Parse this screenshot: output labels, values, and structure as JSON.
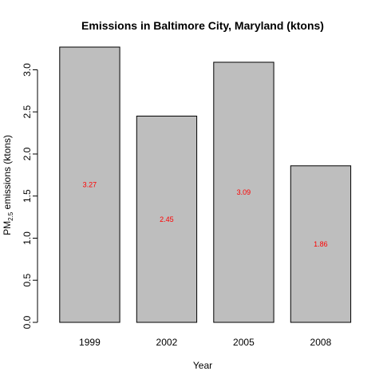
{
  "chart_data": {
    "type": "bar",
    "title": "Emissions in Baltimore City, Maryland (ktons)",
    "xlabel": "Year",
    "ylabel_main": "PM",
    "ylabel_sub": "2.5",
    "ylabel_rest": " emissions (ktons)",
    "categories": [
      "1999",
      "2002",
      "2005",
      "2008"
    ],
    "values": [
      3.27,
      2.45,
      3.09,
      1.86
    ],
    "data_labels": [
      "3.27",
      "2.45",
      "3.09",
      "1.86"
    ],
    "ylim": [
      0,
      3.27
    ],
    "yticks": [
      0.0,
      0.5,
      1.0,
      1.5,
      2.0,
      2.5,
      3.0
    ],
    "ytick_labels": [
      "0.0",
      "0.5",
      "1.0",
      "1.5",
      "2.0",
      "2.5",
      "3.0"
    ],
    "grid": false,
    "legend": "none",
    "bar_color": "#bebebe",
    "label_color": "#ff0000"
  }
}
